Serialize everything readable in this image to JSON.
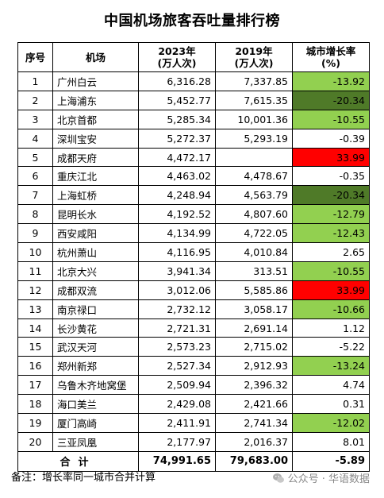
{
  "title": "中国机场旅客吞吐量排行榜",
  "header": {
    "rank": "序号",
    "airport": "机场",
    "y2023_line1": "2023年",
    "y2023_line2": "(万人次)",
    "y2019_line1": "2019年",
    "y2019_line2": "(万人次)",
    "growth_line1": "城市增长率",
    "growth_line2": "(%)"
  },
  "colors": {
    "light_green": "#92d050",
    "dark_green": "#4f7a28",
    "red": "#ff0000"
  },
  "rows": [
    {
      "rank": "1",
      "airport": "广州白云",
      "y2023": "6,316.28",
      "y2019": "7,337.85",
      "growth": "-13.92",
      "hl": "light_green"
    },
    {
      "rank": "2",
      "airport": "上海浦东",
      "y2023": "5,452.77",
      "y2019": "7,615.35",
      "growth": "-20.34",
      "hl": "dark_green"
    },
    {
      "rank": "3",
      "airport": "北京首都",
      "y2023": "5,285.34",
      "y2019": "10,001.36",
      "growth": "-10.55",
      "hl": "light_green"
    },
    {
      "rank": "4",
      "airport": "深圳宝安",
      "y2023": "5,272.37",
      "y2019": "5,293.19",
      "growth": "-0.39",
      "hl": ""
    },
    {
      "rank": "5",
      "airport": "成都天府",
      "y2023": "4,472.17",
      "y2019": "",
      "growth": "33.99",
      "hl": "red"
    },
    {
      "rank": "6",
      "airport": "重庆江北",
      "y2023": "4,463.02",
      "y2019": "4,478.67",
      "growth": "-0.35",
      "hl": ""
    },
    {
      "rank": "7",
      "airport": "上海虹桥",
      "y2023": "4,248.94",
      "y2019": "4,563.79",
      "growth": "-20.34",
      "hl": "dark_green"
    },
    {
      "rank": "8",
      "airport": "昆明长水",
      "y2023": "4,192.52",
      "y2019": "4,807.60",
      "growth": "-12.79",
      "hl": "light_green"
    },
    {
      "rank": "9",
      "airport": "西安咸阳",
      "y2023": "4,134.99",
      "y2019": "4,722.05",
      "growth": "-12.43",
      "hl": "light_green"
    },
    {
      "rank": "10",
      "airport": "杭州萧山",
      "y2023": "4,116.95",
      "y2019": "4,010.84",
      "growth": "2.65",
      "hl": ""
    },
    {
      "rank": "11",
      "airport": "北京大兴",
      "y2023": "3,941.34",
      "y2019": "313.51",
      "growth": "-10.55",
      "hl": "light_green"
    },
    {
      "rank": "12",
      "airport": "成都双流",
      "y2023": "3,012.06",
      "y2019": "5,585.86",
      "growth": "33.99",
      "hl": "red"
    },
    {
      "rank": "13",
      "airport": "南京禄口",
      "y2023": "2,732.12",
      "y2019": "3,058.17",
      "growth": "-10.66",
      "hl": "light_green"
    },
    {
      "rank": "14",
      "airport": "长沙黄花",
      "y2023": "2,721.31",
      "y2019": "2,691.14",
      "growth": "1.12",
      "hl": ""
    },
    {
      "rank": "15",
      "airport": "武汉天河",
      "y2023": "2,573.23",
      "y2019": "2,715.02",
      "growth": "-5.22",
      "hl": ""
    },
    {
      "rank": "16",
      "airport": "郑州新郑",
      "y2023": "2,527.34",
      "y2019": "2,912.93",
      "growth": "-13.24",
      "hl": "light_green"
    },
    {
      "rank": "17",
      "airport": "乌鲁木齐地窝堡",
      "y2023": "2,509.94",
      "y2019": "2,396.32",
      "growth": "4.74",
      "hl": ""
    },
    {
      "rank": "18",
      "airport": "海口美兰",
      "y2023": "2,429.08",
      "y2019": "2,421.66",
      "growth": "0.31",
      "hl": ""
    },
    {
      "rank": "19",
      "airport": "厦门高崎",
      "y2023": "2,411.91",
      "y2019": "2,741.34",
      "growth": "-12.02",
      "hl": "light_green"
    },
    {
      "rank": "20",
      "airport": "三亚凤凰",
      "y2023": "2,177.97",
      "y2019": "2,016.37",
      "growth": "8.01",
      "hl": ""
    }
  ],
  "total": {
    "label": "合计",
    "y2023": "74,991.65",
    "y2019": "79,683.00",
    "growth": "-5.89"
  },
  "note": "备注：增长率同一城市合并计算",
  "watermark": "公众号 · 华语数据"
}
